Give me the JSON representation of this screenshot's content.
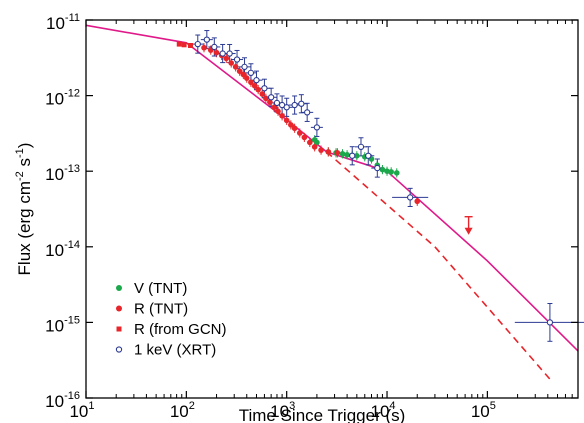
{
  "chart_data": {
    "type": "scatter",
    "x_scale": "log",
    "y_scale": "log",
    "xlim": [
      10,
      800000
    ],
    "ylim": [
      1e-16,
      1e-11
    ],
    "xlabel": "Time Since Trigger (s)",
    "ylabel_parts": [
      "Flux (erg cm",
      "-2",
      " s",
      "-1",
      ")"
    ],
    "x_ticks": [
      {
        "value": 10,
        "base": "10",
        "exp": "1"
      },
      {
        "value": 100,
        "base": "10",
        "exp": "2"
      },
      {
        "value": 1000,
        "base": "10",
        "exp": "3"
      },
      {
        "value": 10000,
        "base": "10",
        "exp": "4"
      },
      {
        "value": 100000,
        "base": "10",
        "exp": "5"
      }
    ],
    "y_ticks": [
      {
        "value": 1e-16,
        "base": "10",
        "exp": "-16"
      },
      {
        "value": 1e-15,
        "base": "10",
        "exp": "-15"
      },
      {
        "value": 1e-14,
        "base": "10",
        "exp": "-14"
      },
      {
        "value": 1e-13,
        "base": "10",
        "exp": "-13"
      },
      {
        "value": 1e-12,
        "base": "10",
        "exp": "-12"
      },
      {
        "value": 1e-11,
        "base": "10",
        "exp": "-11"
      }
    ],
    "grid": false,
    "legend_position": "bottom-left",
    "colors": {
      "green": "#1aa84a",
      "red": "#e8252a",
      "blue": "#2b3a93",
      "fit": "#e0198a"
    },
    "legend": [
      {
        "label": "V (TNT)",
        "marker": "dot",
        "color": "#1aa84a"
      },
      {
        "label": "R (TNT)",
        "marker": "dot",
        "color": "#e8252a"
      },
      {
        "label": "R (from GCN)",
        "marker": "square",
        "color": "#e8252a"
      },
      {
        "label": "1 keV (XRT)",
        "marker": "open-circle",
        "color": "#2b3a93"
      }
    ],
    "series": [
      {
        "name": "V (TNT)",
        "marker": "dot",
        "color": "#1aa84a",
        "points": [
          [
            1900,
            2.6e-13
          ],
          [
            2000,
            2.4e-13
          ],
          [
            2600,
            1.8e-13
          ],
          [
            3100,
            1.75e-13
          ],
          [
            3600,
            1.7e-13
          ],
          [
            4000,
            1.65e-13
          ],
          [
            4500,
            1.62e-13
          ],
          [
            5000,
            1.6e-13
          ],
          [
            6000,
            1.55e-13
          ],
          [
            7000,
            1.45e-13
          ],
          [
            8000,
            1.2e-13
          ],
          [
            9000,
            1.05e-13
          ],
          [
            10000,
            1e-13
          ],
          [
            11000,
            9.8e-14
          ],
          [
            12500,
            9.5e-14
          ]
        ]
      },
      {
        "name": "R (TNT)",
        "marker": "dot",
        "color": "#e8252a",
        "points": [
          [
            150,
            4.3e-12
          ],
          [
            175,
            4e-12
          ],
          [
            200,
            3.7e-12
          ],
          [
            225,
            3.4e-12
          ],
          [
            250,
            3.1e-12
          ],
          [
            280,
            2.7e-12
          ],
          [
            310,
            2.4e-12
          ],
          [
            340,
            2.1e-12
          ],
          [
            370,
            1.9e-12
          ],
          [
            400,
            1.7e-12
          ],
          [
            440,
            1.5e-12
          ],
          [
            480,
            1.35e-12
          ],
          [
            520,
            1.2e-12
          ],
          [
            570,
            1.05e-12
          ],
          [
            620,
            9.2e-13
          ],
          [
            680,
            8.2e-13
          ],
          [
            750,
            7e-13
          ],
          [
            820,
            6.2e-13
          ],
          [
            900,
            5.4e-13
          ],
          [
            1000,
            4.7e-13
          ],
          [
            1100,
            4.1e-13
          ],
          [
            1200,
            3.7e-13
          ],
          [
            1350,
            3.2e-13
          ],
          [
            1500,
            2.8e-13
          ],
          [
            1700,
            2.4e-13
          ],
          [
            1900,
            2.1e-13
          ],
          [
            2200,
            1.9e-13
          ],
          [
            2600,
            1.8e-13
          ],
          [
            3200,
            1.75e-13
          ],
          [
            20000,
            4e-14
          ]
        ]
      },
      {
        "name": "R (from GCN)",
        "marker": "square",
        "color": "#e8252a",
        "points": [
          [
            85,
            4.8e-12
          ],
          [
            95,
            4.7e-12
          ],
          [
            110,
            4.6e-12
          ]
        ]
      },
      {
        "name": "1 keV (XRT)",
        "marker": "open-circle",
        "color": "#2b3a93",
        "points": [
          [
            130,
            4.8e-12
          ],
          [
            160,
            5.5e-12
          ],
          [
            190,
            4.4e-12
          ],
          [
            230,
            3.6e-12
          ],
          [
            270,
            3.6e-12
          ],
          [
            320,
            3e-12
          ],
          [
            380,
            2.4e-12
          ],
          [
            440,
            2e-12
          ],
          [
            500,
            1.6e-12
          ],
          [
            600,
            1.25e-12
          ],
          [
            700,
            9.5e-13
          ],
          [
            800,
            8e-13
          ],
          [
            900,
            7.5e-13
          ],
          [
            1000,
            7e-13
          ],
          [
            1200,
            7.5e-13
          ],
          [
            1400,
            7.8e-13
          ],
          [
            1600,
            6e-13
          ],
          [
            2000,
            3.8e-13
          ],
          [
            4500,
            1.6e-13
          ],
          [
            5500,
            2.1e-13
          ],
          [
            6500,
            1.6e-13
          ],
          [
            8000,
            1.1e-13
          ],
          [
            17000,
            4.5e-14
          ],
          [
            420000,
            1e-15
          ]
        ]
      }
    ],
    "upper_limit": {
      "x": 65000,
      "y": 2.5e-14,
      "color": "#e8252a"
    },
    "fit_lines": [
      {
        "style": "solid",
        "color": "#e0198a",
        "points": [
          [
            10,
            8.5e-12
          ],
          [
            100,
            5e-12
          ],
          [
            1000,
            4.8e-13
          ],
          [
            2500,
            1.8e-13
          ],
          [
            10000,
            1e-13
          ],
          [
            100000,
            6.5e-15
          ],
          [
            800000,
            4.2e-16
          ]
        ]
      },
      {
        "style": "dashed",
        "color": "#e8252a",
        "points": [
          [
            2500,
            1.8e-13
          ],
          [
            30000,
            1e-14
          ],
          [
            450000,
            1.6e-16
          ]
        ]
      }
    ]
  }
}
